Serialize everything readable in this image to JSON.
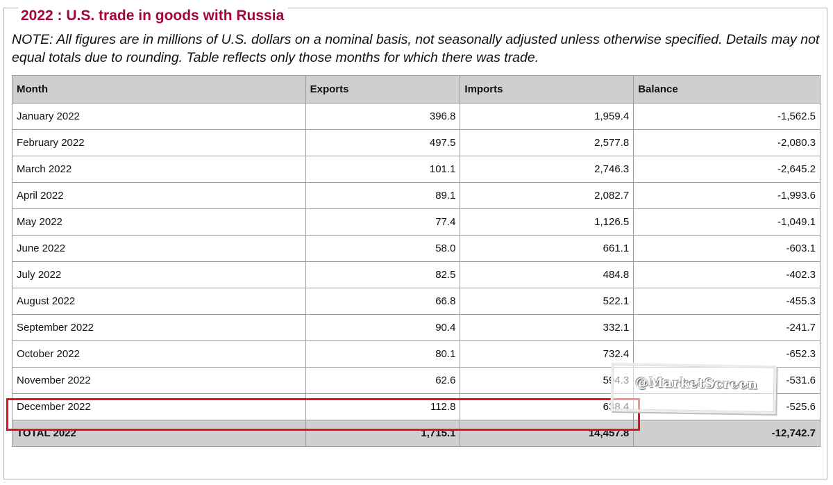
{
  "title": "2022 : U.S. trade in goods with Russia",
  "note": "NOTE: All figures are in millions of U.S. dollars on a nominal basis, not seasonally adjusted unless otherwise specified. Details may not equal totals due to rounding. Table reflects only those months for which there was trade.",
  "table": {
    "headers": [
      "Month",
      "Exports",
      "Imports",
      "Balance"
    ],
    "rows": [
      {
        "month": "January 2022",
        "exports": "396.8",
        "imports": "1,959.4",
        "balance": "-1,562.5"
      },
      {
        "month": "February 2022",
        "exports": "497.5",
        "imports": "2,577.8",
        "balance": "-2,080.3"
      },
      {
        "month": "March 2022",
        "exports": "101.1",
        "imports": "2,746.3",
        "balance": "-2,645.2"
      },
      {
        "month": "April 2022",
        "exports": "89.1",
        "imports": "2,082.7",
        "balance": "-1,993.6"
      },
      {
        "month": "May 2022",
        "exports": "77.4",
        "imports": "1,126.5",
        "balance": "-1,049.1"
      },
      {
        "month": "June 2022",
        "exports": "58.0",
        "imports": "661.1",
        "balance": "-603.1"
      },
      {
        "month": "July 2022",
        "exports": "82.5",
        "imports": "484.8",
        "balance": "-402.3"
      },
      {
        "month": "August 2022",
        "exports": "66.8",
        "imports": "522.1",
        "balance": "-455.3"
      },
      {
        "month": "September 2022",
        "exports": "90.4",
        "imports": "332.1",
        "balance": "-241.7"
      },
      {
        "month": "October 2022",
        "exports": "80.1",
        "imports": "732.4",
        "balance": "-652.3"
      },
      {
        "month": "November 2022",
        "exports": "62.6",
        "imports": "594.3",
        "balance": "-531.6"
      },
      {
        "month": "December 2022",
        "exports": "112.8",
        "imports": "638.4",
        "balance": "-525.6"
      }
    ],
    "total": {
      "month": "TOTAL 2022",
      "exports": "1,715.1",
      "imports": "14,457.8",
      "balance": "-12,742.7"
    }
  },
  "highlight_color": "#e0141e",
  "title_color": "#a0063a",
  "watermark": "@MarketScreen"
}
